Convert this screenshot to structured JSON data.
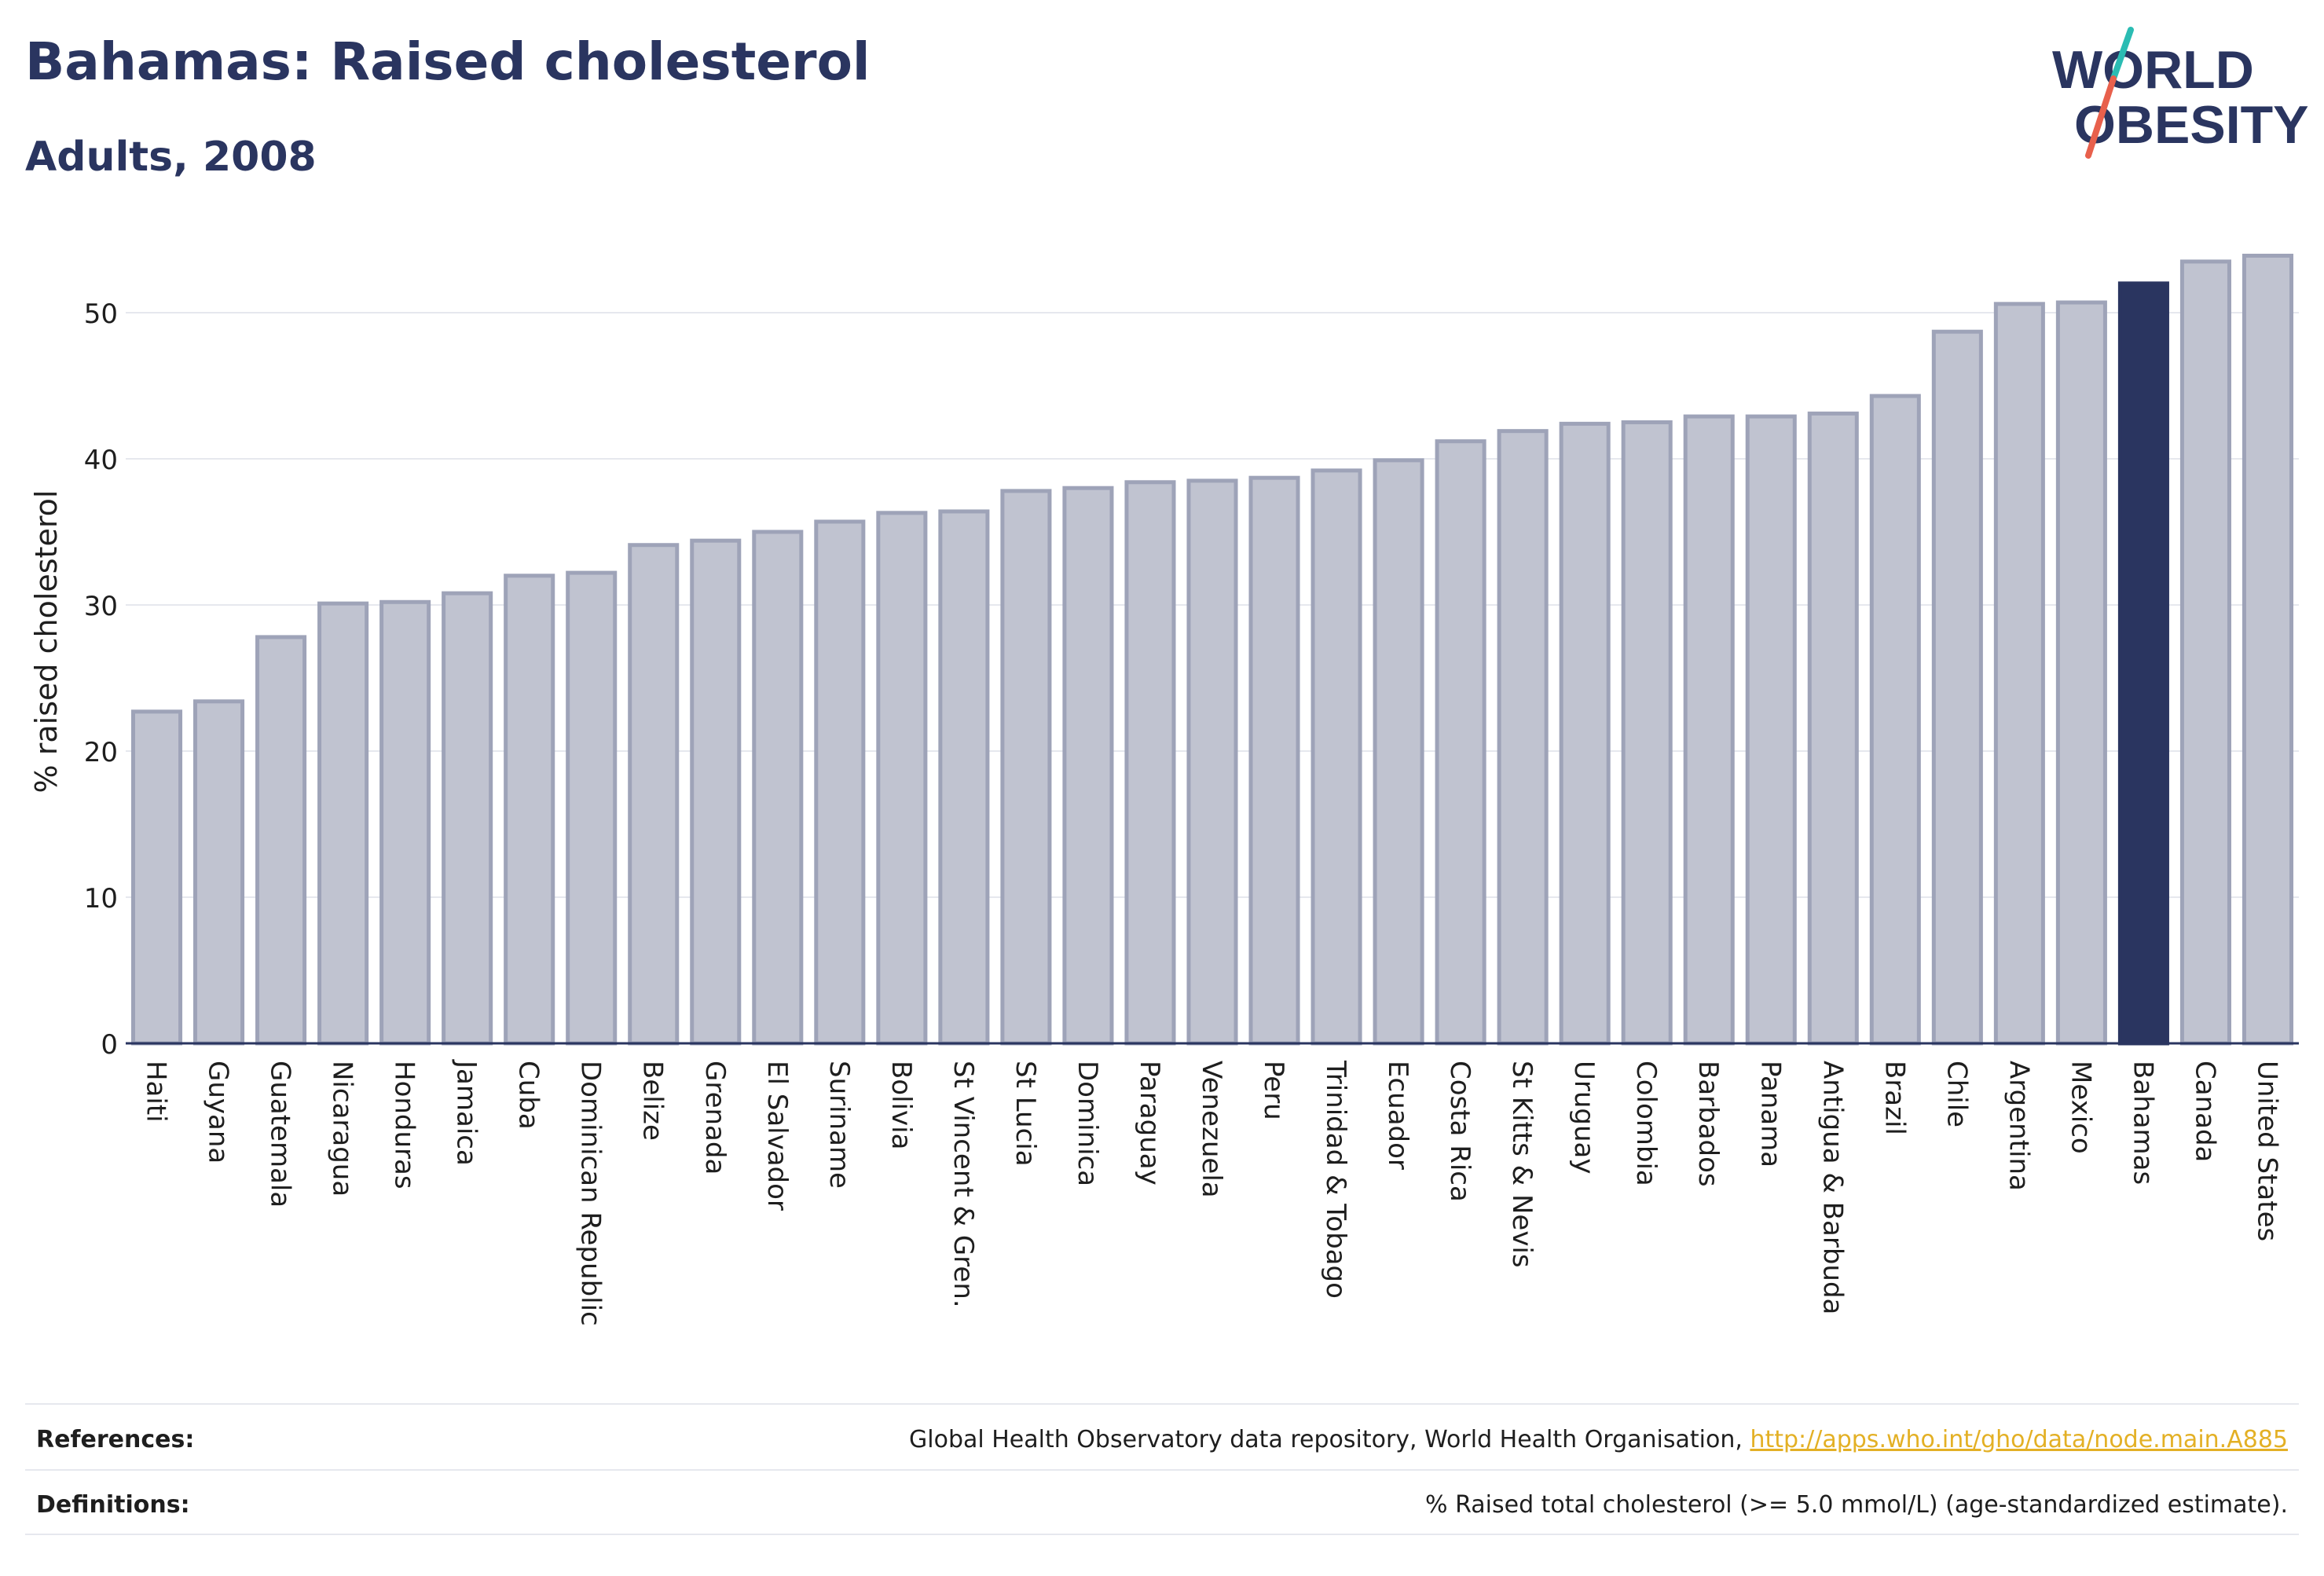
{
  "header": {
    "title": "Bahamas: Raised cholesterol",
    "subtitle": "Adults, 2008"
  },
  "logo": {
    "line1": "WORLD",
    "line2": "OBESITY",
    "colors": {
      "text": "#2a3560",
      "slash_teal": "#2bbcb3",
      "slash_red": "#e8604c"
    }
  },
  "chart_data": {
    "type": "bar",
    "title": "Bahamas: Raised cholesterol",
    "ylabel": "% raised cholesterol",
    "xlabel": "",
    "ylim": [
      0,
      55
    ],
    "yticks": [
      0,
      10,
      20,
      30,
      40,
      50
    ],
    "grid": true,
    "highlight": "Bahamas",
    "colors": {
      "bar": "#c0c3d0",
      "bar_border": "#9ea3b8",
      "highlight": "#2a3560"
    },
    "categories": [
      "Haiti",
      "Guyana",
      "Guatemala",
      "Nicaragua",
      "Honduras",
      "Jamaica",
      "Cuba",
      "Dominican Republic",
      "Belize",
      "Grenada",
      "El Salvador",
      "Suriname",
      "Bolivia",
      "St Vincent & Gren.",
      "St Lucia",
      "Dominica",
      "Paraguay",
      "Venezuela",
      "Peru",
      "Trinidad & Tobago",
      "Ecuador",
      "Costa Rica",
      "St Kitts & Nevis",
      "Uruguay",
      "Colombia",
      "Barbados",
      "Panama",
      "Antigua & Barbuda",
      "Brazil",
      "Chile",
      "Argentina",
      "Mexico",
      "Bahamas",
      "Canada",
      "United States"
    ],
    "values": [
      22.7,
      23.4,
      27.8,
      30.1,
      30.2,
      30.8,
      32.0,
      32.2,
      34.1,
      34.4,
      35.0,
      35.7,
      36.3,
      36.4,
      37.8,
      38.0,
      38.4,
      38.5,
      38.7,
      39.2,
      39.9,
      41.2,
      41.9,
      42.4,
      42.5,
      42.9,
      42.9,
      43.1,
      44.3,
      48.7,
      50.6,
      50.7,
      52.0,
      53.5,
      53.9
    ]
  },
  "footer": {
    "references_label": "References:",
    "references_text": "Global Health Observatory data repository, World Health Organisation, ",
    "references_link": "http://apps.who.int/gho/data/node.main.A885",
    "definitions_label": "Definitions:",
    "definitions_text": "% Raised total cholesterol (>= 5.0 mmol/L) (age-standardized estimate)."
  }
}
